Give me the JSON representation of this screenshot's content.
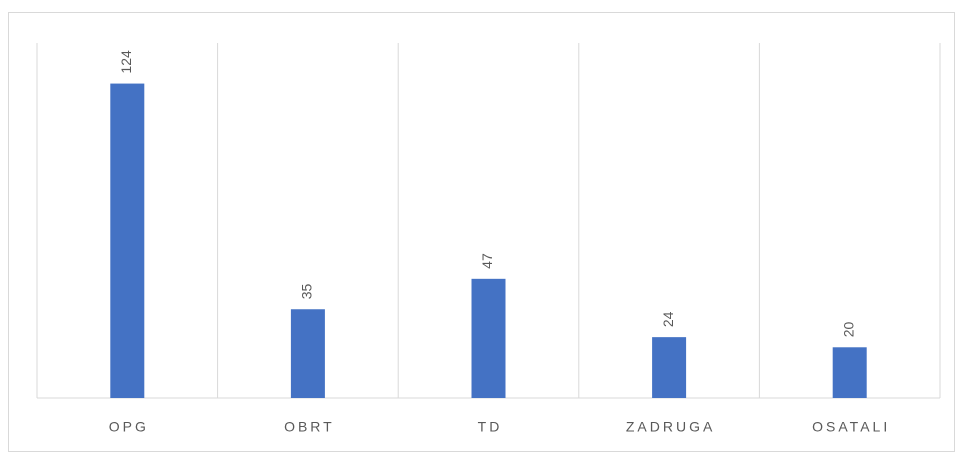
{
  "chart_data": {
    "type": "bar",
    "categories": [
      "OPG",
      "OBRT",
      "TD",
      "ZADRUGA",
      "OSATALI"
    ],
    "values": [
      124,
      35,
      47,
      24,
      20
    ],
    "color": "#4472c4",
    "ylim": [
      0,
      140
    ]
  }
}
